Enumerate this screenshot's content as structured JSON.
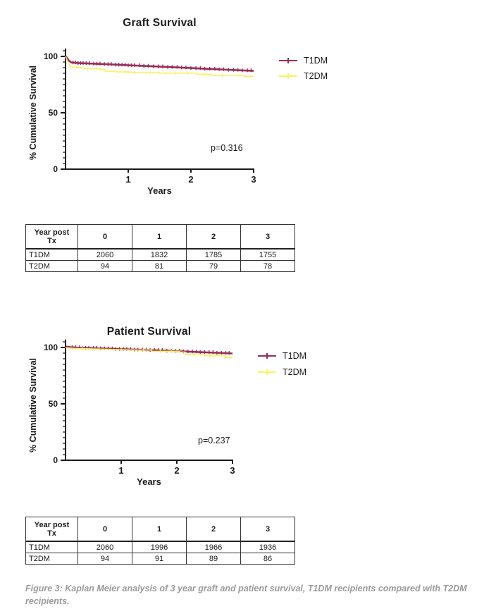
{
  "figure": {
    "caption": "Figure 3: Kaplan Meier analysis of 3 year graft and patient survival, T1DM recipients compared with T2DM recipients."
  },
  "colors": {
    "t1dm": "#9B2B59",
    "t2dm": "#F8F25F",
    "axis": "#1A1A1A",
    "caption": "#9A9A9A"
  },
  "chart_data": [
    {
      "type": "line",
      "subtype": "kaplan-meier",
      "title": "Graft Survival",
      "xlabel": "Years",
      "ylabel": "% Cumulative Survival",
      "p_label": "p=0.316",
      "xlim": [
        0,
        3
      ],
      "ylim": [
        0,
        107
      ],
      "x_ticks": [
        1,
        2,
        3
      ],
      "y_ticks": [
        0,
        50,
        100
      ],
      "y_minor_step": 5,
      "legend_position": "right",
      "series": [
        {
          "name": "T1DM",
          "color_key": "t1dm",
          "points": [
            [
              0,
              100
            ],
            [
              0.02,
              99
            ],
            [
              0.05,
              96.5
            ],
            [
              0.09,
              94.6
            ],
            [
              0.2,
              94.1
            ],
            [
              0.4,
              93.6
            ],
            [
              0.6,
              93.2
            ],
            [
              0.8,
              92.7
            ],
            [
              1.0,
              92.2
            ],
            [
              1.2,
              91.7
            ],
            [
              1.4,
              91.2
            ],
            [
              1.6,
              90.7
            ],
            [
              1.8,
              90.2
            ],
            [
              2.0,
              89.6
            ],
            [
              2.2,
              89.1
            ],
            [
              2.4,
              88.6
            ],
            [
              2.6,
              88.1
            ],
            [
              2.8,
              87.6
            ],
            [
              3.0,
              87.1
            ]
          ],
          "censor_x": [
            0.12,
            0.16,
            0.2,
            0.24,
            0.28,
            0.33,
            0.38,
            0.45,
            0.5,
            0.55,
            0.62,
            0.68,
            0.73,
            0.8,
            0.85,
            0.9,
            0.95,
            1.0,
            1.05,
            1.1,
            1.18,
            1.25,
            1.32,
            1.4,
            1.48,
            1.55,
            1.63,
            1.7,
            1.78,
            1.85,
            1.92,
            2.0,
            2.08,
            2.15,
            2.22,
            2.3,
            2.38,
            2.45,
            2.52,
            2.6,
            2.68,
            2.75,
            2.82,
            2.9,
            2.96
          ]
        },
        {
          "name": "T2DM",
          "color_key": "t2dm",
          "points": [
            [
              0,
              100
            ],
            [
              0.03,
              96
            ],
            [
              0.08,
              90.5
            ],
            [
              0.3,
              90
            ],
            [
              0.3,
              89.2
            ],
            [
              0.55,
              89.2
            ],
            [
              0.55,
              88.2
            ],
            [
              0.63,
              88.2
            ],
            [
              0.63,
              86.8
            ],
            [
              0.8,
              86.8
            ],
            [
              0.8,
              86.2
            ],
            [
              1.05,
              86.2
            ],
            [
              1.05,
              85.6
            ],
            [
              1.5,
              85.6
            ],
            [
              1.5,
              85.1
            ],
            [
              2.1,
              85.1
            ],
            [
              2.1,
              84.2
            ],
            [
              2.33,
              84.2
            ],
            [
              2.33,
              83.1
            ],
            [
              2.85,
              83.1
            ],
            [
              2.85,
              82.4
            ],
            [
              3,
              82.4
            ]
          ],
          "censor_x": [
            0.35,
            0.5,
            0.95,
            1.0,
            1.1,
            1.35,
            1.6,
            1.75,
            1.95,
            2.2,
            2.5,
            2.78,
            2.95
          ]
        }
      ]
    },
    {
      "type": "line",
      "subtype": "kaplan-meier",
      "title": "Patient Survival",
      "xlabel": "Years",
      "ylabel": "% Cumulative Survival",
      "p_label": "p=0.237",
      "xlim": [
        0,
        3
      ],
      "ylim": [
        0,
        107
      ],
      "x_ticks": [
        1,
        2,
        3
      ],
      "y_ticks": [
        0,
        50,
        100
      ],
      "y_minor_step": 5,
      "legend_position": "right",
      "series": [
        {
          "name": "T1DM",
          "color_key": "t1dm",
          "points": [
            [
              0,
              100.8
            ],
            [
              0.1,
              100.2
            ],
            [
              0.3,
              99.7
            ],
            [
              0.6,
              99.2
            ],
            [
              0.9,
              98.7
            ],
            [
              1.2,
              98.2
            ],
            [
              1.5,
              97.7
            ],
            [
              1.8,
              97.1
            ],
            [
              2.1,
              96.5
            ],
            [
              2.4,
              95.9
            ],
            [
              2.7,
              95.3
            ],
            [
              3.0,
              94.7
            ]
          ],
          "censor_x": [
            0.12,
            0.18,
            0.25,
            0.3,
            0.36,
            0.42,
            0.5,
            0.56,
            0.63,
            0.7,
            0.77,
            0.84,
            0.9,
            0.97,
            1.04,
            1.1,
            1.17,
            1.24,
            1.3,
            1.38,
            1.45,
            1.52,
            1.6,
            1.67,
            1.74,
            1.82,
            1.9,
            1.97,
            2.05,
            2.12,
            2.2,
            2.28,
            2.35,
            2.42,
            2.5,
            2.58,
            2.65,
            2.72,
            2.8,
            2.88,
            2.94
          ]
        },
        {
          "name": "T2DM",
          "color_key": "t2dm",
          "points": [
            [
              0,
              99.8
            ],
            [
              0.15,
              99.2
            ],
            [
              0.5,
              98.7
            ],
            [
              0.9,
              98.2
            ],
            [
              1.3,
              97.7
            ],
            [
              1.55,
              97.7
            ],
            [
              1.55,
              96.6
            ],
            [
              2.05,
              96.6
            ],
            [
              2.05,
              95.9
            ],
            [
              2.15,
              95.9
            ],
            [
              2.15,
              93.8
            ],
            [
              2.5,
              93.8
            ],
            [
              2.5,
              92.6
            ],
            [
              2.87,
              92.6
            ],
            [
              2.87,
              91.2
            ],
            [
              3,
              91.2
            ]
          ],
          "censor_x": [
            0.3,
            0.6,
            1.0,
            1.4,
            1.7,
            1.9,
            2.3,
            2.6,
            2.95
          ]
        }
      ]
    }
  ],
  "tables": [
    {
      "headers": [
        "Year post\nTx",
        "0",
        "1",
        "2",
        "3"
      ],
      "rows": [
        [
          "T1DM",
          "2060",
          "1832",
          "1785",
          "1755"
        ],
        [
          "T2DM",
          "94",
          "81",
          "79",
          "78"
        ]
      ]
    },
    {
      "headers": [
        "Year post\nTx",
        "0",
        "1",
        "2",
        "3"
      ],
      "rows": [
        [
          "T1DM",
          "2060",
          "1996",
          "1966",
          "1936"
        ],
        [
          "T2DM",
          "94",
          "91",
          "89",
          "86"
        ]
      ]
    }
  ]
}
